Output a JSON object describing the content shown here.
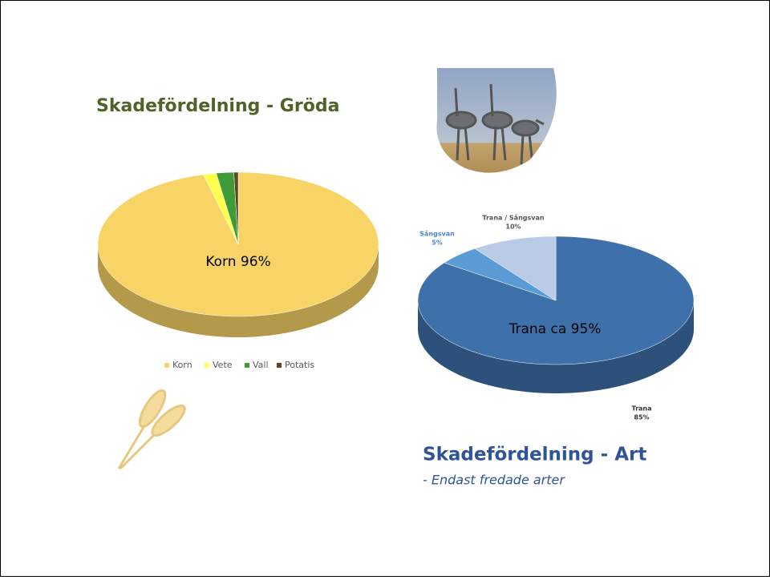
{
  "chart_data": [
    {
      "type": "pie",
      "title": "Skadefördelning - Gröda",
      "categories": [
        "Korn",
        "Vete",
        "Vall",
        "Potatis"
      ],
      "values": [
        96,
        1.5,
        2,
        0.5
      ],
      "colors": [
        "#f8d466",
        "#ffff4d",
        "#3f9b3a",
        "#5a4a1c"
      ],
      "annotation": "Korn 96%",
      "legend": "bottom"
    },
    {
      "type": "pie",
      "title": "Skadefördelning - Art",
      "subtitle": "- Endast fredade arter",
      "categories": [
        "Trana",
        "Sångsvan",
        "Trana / Sångsvan"
      ],
      "values": [
        85,
        5,
        10
      ],
      "value_labels": [
        "85%",
        "5%",
        "10%"
      ],
      "colors": [
        "#3e70aa",
        "#5b9bd5",
        "#b9cbe6"
      ],
      "annotation": "Trana ca 95%"
    }
  ]
}
